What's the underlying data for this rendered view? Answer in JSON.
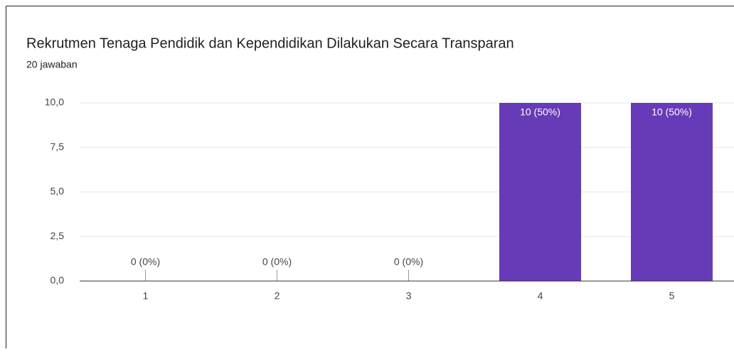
{
  "chart_data": {
    "type": "bar",
    "title": "Rekrutmen Tenaga Pendidik dan Kependidikan Dilakukan Secara Transparan",
    "subtitle": "20 jawaban",
    "categories": [
      "1",
      "2",
      "3",
      "4",
      "5"
    ],
    "values": [
      0,
      0,
      0,
      10,
      10
    ],
    "value_labels": [
      "0 (0%)",
      "0 (0%)",
      "0 (0%)",
      "10 (50%)",
      "10 (50%)"
    ],
    "color": "#673ab7",
    "ylim": [
      0,
      10
    ],
    "yticks": [
      {
        "value": 0,
        "label": "0,0"
      },
      {
        "value": 2.5,
        "label": "2,5"
      },
      {
        "value": 5,
        "label": "5,0"
      },
      {
        "value": 7.5,
        "label": "7,5"
      },
      {
        "value": 10,
        "label": "10,0"
      }
    ],
    "grid": true
  }
}
